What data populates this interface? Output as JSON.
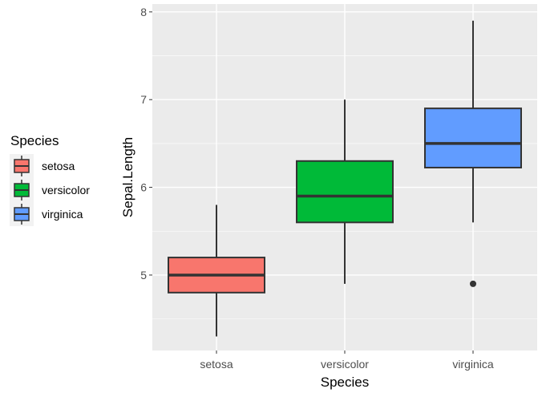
{
  "chart_data": {
    "type": "boxplot",
    "title": "",
    "xlabel": "Species",
    "ylabel": "Sepal.Length",
    "categories": [
      "setosa",
      "versicolor",
      "virginica"
    ],
    "ylim": [
      4.14,
      8.09
    ],
    "yticks": [
      5,
      6,
      7,
      8
    ],
    "grid": true,
    "legend": {
      "title": "Species",
      "position": "left",
      "entries": [
        "setosa",
        "versicolor",
        "virginica"
      ]
    },
    "series": [
      {
        "name": "setosa",
        "color": "#F8766D",
        "min": 4.3,
        "q1": 4.8,
        "median": 5.0,
        "q3": 5.2,
        "max": 5.8,
        "outliers": []
      },
      {
        "name": "versicolor",
        "color": "#00BA38",
        "min": 4.9,
        "q1": 5.6,
        "median": 5.9,
        "q3": 6.3,
        "max": 7.0,
        "outliers": []
      },
      {
        "name": "virginica",
        "color": "#619CFF",
        "min": 5.6,
        "q1": 6.225,
        "median": 6.5,
        "q3": 6.9,
        "max": 7.9,
        "outliers": [
          4.9
        ]
      }
    ]
  }
}
